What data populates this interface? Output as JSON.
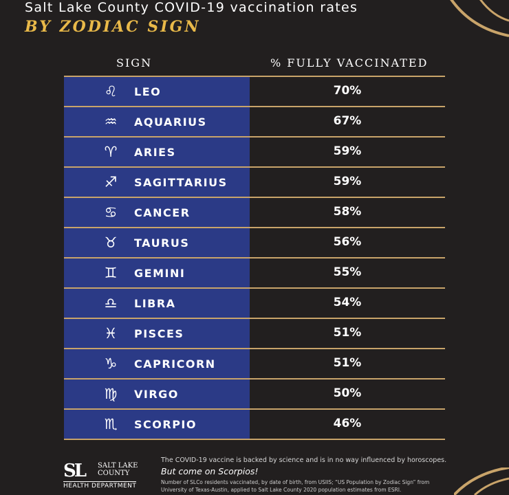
{
  "title": "Salt Lake County COVID-19 vaccination rates",
  "subtitle": "BY ZODIAC SIGN",
  "colors": {
    "background": "#221f1f",
    "accent": "#e9b949",
    "row_fill": "#2b3a86",
    "rule": "#c9a46a"
  },
  "chart_data": {
    "type": "table",
    "columns": [
      "SIGN",
      "% FULLY VACCINATED"
    ],
    "rows": [
      {
        "symbol": "♌",
        "sign": "LEO",
        "pct": "70%",
        "value": 70
      },
      {
        "symbol": "♒",
        "sign": "AQUARIUS",
        "pct": "67%",
        "value": 67
      },
      {
        "symbol": "♈",
        "sign": "ARIES",
        "pct": "59%",
        "value": 59
      },
      {
        "symbol": "♐",
        "sign": "SAGITTARIUS",
        "pct": "59%",
        "value": 59
      },
      {
        "symbol": "♋",
        "sign": "CANCER",
        "pct": "58%",
        "value": 58
      },
      {
        "symbol": "♉",
        "sign": "TAURUS",
        "pct": "56%",
        "value": 56
      },
      {
        "symbol": "♊",
        "sign": "GEMINI",
        "pct": "55%",
        "value": 55
      },
      {
        "symbol": "♎",
        "sign": "LIBRA",
        "pct": "54%",
        "value": 54
      },
      {
        "symbol": "♓",
        "sign": "PISCES",
        "pct": "51%",
        "value": 51
      },
      {
        "symbol": "♑",
        "sign": "CAPRICORN",
        "pct": "51%",
        "value": 51
      },
      {
        "symbol": "♍",
        "sign": "VIRGO",
        "pct": "50%",
        "value": 50
      },
      {
        "symbol": "♏",
        "sign": "SCORPIO",
        "pct": "46%",
        "value": 46
      }
    ]
  },
  "footer": {
    "logo_mark": "SL",
    "logo_line1": "SALT LAKE",
    "logo_line2": "COUNTY",
    "logo_line3": "HEALTH DEPARTMENT",
    "note": "The COVID-19 vaccine is backed by science and is in no way influenced by horoscopes.",
    "note_italic": "But come on Scorpios!",
    "source_line1": "Number of SLCo residents vaccinated, by date of birth, from USIIS; “US Population by Zodiac Sign” from",
    "source_line2": "University of Texas-Austin, applied to Salt Lake County 2020 population estimates from ESRI."
  }
}
